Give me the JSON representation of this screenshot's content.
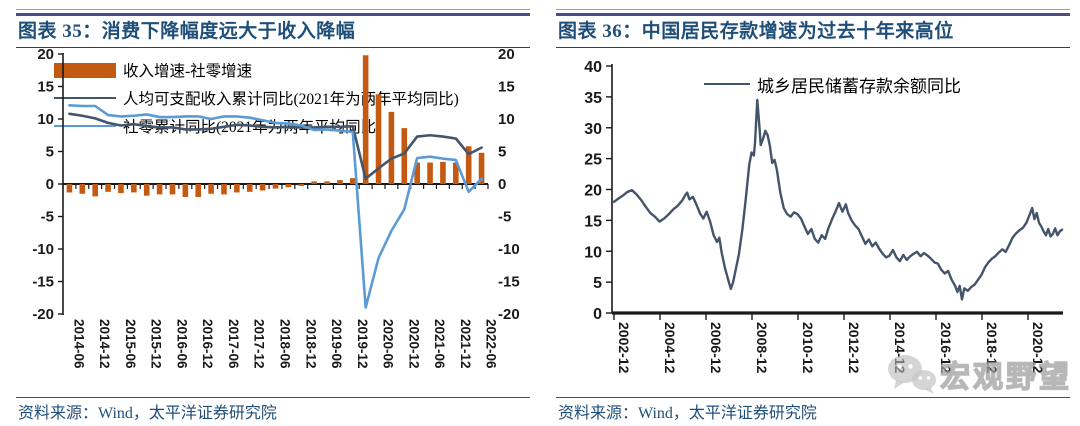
{
  "figures": [
    {
      "title": "图表 35：消费下降幅度远大于收入降幅",
      "source": "资料来源：Wind，太平洋证券研究院"
    },
    {
      "title": "图表 36：中国居民存款增速为过去十年来高位",
      "source": "资料来源：Wind，太平洋证券研究院"
    }
  ],
  "chart_data": [
    {
      "type": "bar",
      "title": "消费下降幅度远大于收入降幅",
      "xlabel": "",
      "ylabel": "",
      "ylim": [
        -20,
        20
      ],
      "y_ticks": [
        20,
        15,
        10,
        5,
        0,
        -5,
        -10,
        -15,
        -20
      ],
      "dual_y_axis": true,
      "grid": false,
      "legend_position": "top-left-inside",
      "x": [
        "2014-06",
        "2014-09",
        "2014-12",
        "2015-03",
        "2015-06",
        "2015-09",
        "2015-12",
        "2016-03",
        "2016-06",
        "2016-09",
        "2016-12",
        "2017-03",
        "2017-06",
        "2017-09",
        "2017-12",
        "2018-03",
        "2018-06",
        "2018-09",
        "2018-12",
        "2019-03",
        "2019-06",
        "2019-09",
        "2019-12",
        "2020-03",
        "2020-06",
        "2020-09",
        "2020-12",
        "2021-03",
        "2021-06",
        "2021-09",
        "2021-12",
        "2022-03",
        "2022-06"
      ],
      "x_tick_labels": [
        "2014-06",
        "2014-12",
        "2015-06",
        "2015-12",
        "2016-06",
        "2016-12",
        "2017-06",
        "2017-12",
        "2018-06",
        "2018-12",
        "2019-06",
        "2019-12",
        "2020-06",
        "2020-12",
        "2021-06",
        "2021-12",
        "2022-06"
      ],
      "series": [
        {
          "name": "收入增速-社零增速",
          "type": "bar",
          "color": "#C45911",
          "values": [
            -1.3,
            -1.5,
            -1.9,
            -1.2,
            -1.4,
            -1.3,
            -1.8,
            -1.6,
            -1.6,
            -2.0,
            -2.0,
            -1.5,
            -1.6,
            -1.3,
            -1.2,
            -1.0,
            -0.7,
            -0.5,
            -0.3,
            0.4,
            0.4,
            0.6,
            0.9,
            19.8,
            13.8,
            11.1,
            8.6,
            3.3,
            3.3,
            3.4,
            3.3,
            5.8,
            4.8
          ]
        },
        {
          "name": "人均可支配收入累计同比(2021年为两年平均同比)",
          "type": "line",
          "color": "#44546A",
          "values": [
            10.8,
            10.5,
            10.1,
            9.4,
            9.0,
            9.2,
            8.9,
            8.7,
            8.7,
            8.4,
            8.4,
            8.5,
            8.8,
            9.1,
            9.0,
            8.8,
            8.7,
            8.8,
            8.7,
            8.7,
            8.8,
            8.8,
            8.9,
            0.8,
            2.4,
            3.9,
            4.7,
            7.3,
            7.5,
            7.3,
            7.0,
            4.6,
            5.6
          ]
        },
        {
          "name": "社零累计同比(2021年为两年平均同比)",
          "type": "line",
          "color": "#5B9BD5",
          "values": [
            12.1,
            12.0,
            12.0,
            10.6,
            10.4,
            10.5,
            10.7,
            10.3,
            10.3,
            10.4,
            10.4,
            10.0,
            10.4,
            10.4,
            10.2,
            9.8,
            9.4,
            9.3,
            9.0,
            8.3,
            8.4,
            8.2,
            8.0,
            -19.0,
            -11.4,
            -7.2,
            -3.9,
            4.0,
            4.2,
            3.9,
            3.7,
            -1.2,
            0.8
          ]
        }
      ]
    },
    {
      "type": "line",
      "title": "中国居民存款增速为过去十年来高位",
      "xlabel": "",
      "ylabel": "",
      "ylim": [
        0,
        40
      ],
      "y_ticks": [
        40,
        35,
        30,
        25,
        20,
        15,
        10,
        5,
        0
      ],
      "grid": false,
      "legend_position": "top-center-inside",
      "x_tick_labels": [
        "2002-12",
        "2004-12",
        "2006-12",
        "2008-12",
        "2010-12",
        "2012-12",
        "2014-12",
        "2016-12",
        "2018-12",
        "2020-12"
      ],
      "x_tick_years": [
        2002.92,
        2004.92,
        2006.92,
        2008.92,
        2010.92,
        2012.92,
        2014.92,
        2016.92,
        2018.92,
        2020.92
      ],
      "series": [
        {
          "name": "城乡居民储蓄存款余额同比",
          "type": "line",
          "color": "#44546A",
          "x": [
            2002.92,
            2003.1,
            2003.3,
            2003.5,
            2003.7,
            2003.9,
            2004.1,
            2004.3,
            2004.5,
            2004.7,
            2004.9,
            2005.1,
            2005.3,
            2005.5,
            2005.7,
            2005.9,
            2006.0,
            2006.1,
            2006.2,
            2006.35,
            2006.5,
            2006.65,
            2006.8,
            2006.95,
            2007.1,
            2007.25,
            2007.4,
            2007.5,
            2007.6,
            2007.75,
            2007.9,
            2008.0,
            2008.1,
            2008.2,
            2008.35,
            2008.5,
            2008.65,
            2008.8,
            2008.9,
            2009.0,
            2009.05,
            2009.15,
            2009.25,
            2009.3,
            2009.4,
            2009.5,
            2009.6,
            2009.7,
            2009.8,
            2009.9,
            2010.0,
            2010.15,
            2010.3,
            2010.45,
            2010.6,
            2010.75,
            2010.9,
            2011.05,
            2011.2,
            2011.35,
            2011.5,
            2011.65,
            2011.8,
            2011.95,
            2012.1,
            2012.25,
            2012.4,
            2012.55,
            2012.7,
            2012.85,
            2013.0,
            2013.1,
            2013.25,
            2013.4,
            2013.55,
            2013.7,
            2013.85,
            2014.0,
            2014.15,
            2014.3,
            2014.45,
            2014.6,
            2014.75,
            2014.9,
            2015.05,
            2015.2,
            2015.35,
            2015.5,
            2015.65,
            2015.8,
            2015.95,
            2016.1,
            2016.25,
            2016.4,
            2016.55,
            2016.7,
            2016.85,
            2017.0,
            2017.15,
            2017.3,
            2017.45,
            2017.6,
            2017.75,
            2017.85,
            2017.95,
            2018.05,
            2018.15,
            2018.3,
            2018.45,
            2018.6,
            2018.75,
            2018.9,
            2019.05,
            2019.2,
            2019.35,
            2019.5,
            2019.65,
            2019.8,
            2019.95,
            2020.1,
            2020.25,
            2020.4,
            2020.55,
            2020.7,
            2020.85,
            2021.0,
            2021.1,
            2021.2,
            2021.3,
            2021.4,
            2021.5,
            2021.6,
            2021.7,
            2021.8,
            2021.9,
            2022.0,
            2022.1,
            2022.2,
            2022.3,
            2022.4
          ],
          "values": [
            18.0,
            18.5,
            19.0,
            19.6,
            19.9,
            19.2,
            18.3,
            17.2,
            16.2,
            15.6,
            14.8,
            15.3,
            16.0,
            16.8,
            17.4,
            18.3,
            19.0,
            19.5,
            18.4,
            18.8,
            17.6,
            16.2,
            15.3,
            16.4,
            14.8,
            12.6,
            11.5,
            12.2,
            9.8,
            7.2,
            5.2,
            3.9,
            5.0,
            6.8,
            9.5,
            13.5,
            18.5,
            24.0,
            26.0,
            25.5,
            27.5,
            34.5,
            29.8,
            27.2,
            28.2,
            29.5,
            28.8,
            27.0,
            24.3,
            24.8,
            23.2,
            19.5,
            17.0,
            16.0,
            15.6,
            16.3,
            16.0,
            15.3,
            14.0,
            12.8,
            13.6,
            12.0,
            11.4,
            12.6,
            12.0,
            13.8,
            15.2,
            16.4,
            17.8,
            16.4,
            17.6,
            16.2,
            15.0,
            14.2,
            13.6,
            12.4,
            11.2,
            11.9,
            10.8,
            11.4,
            10.4,
            9.6,
            9.0,
            9.3,
            10.2,
            9.0,
            8.4,
            9.4,
            8.6,
            9.2,
            9.6,
            9.9,
            9.2,
            9.7,
            9.3,
            8.8,
            8.2,
            8.0,
            7.0,
            6.4,
            6.8,
            5.4,
            4.4,
            3.4,
            4.4,
            2.2,
            4.0,
            3.6,
            4.2,
            4.6,
            5.4,
            6.2,
            7.4,
            8.2,
            8.8,
            9.2,
            9.8,
            10.3,
            9.9,
            11.0,
            12.2,
            12.9,
            13.4,
            13.8,
            14.6,
            16.0,
            17.0,
            15.2,
            16.2,
            14.6,
            14.0,
            13.2,
            12.6,
            13.6,
            12.4,
            12.8,
            13.7,
            12.6,
            13.2,
            13.5
          ]
        }
      ]
    }
  ],
  "watermark": {
    "icon": "wechat-icon",
    "text": "宏观野望"
  },
  "colors": {
    "bar_orange": "#C45911",
    "line_dark_slate": "#44546A",
    "line_light_blue": "#5B9BD5",
    "title_blue": "#1F4E79",
    "rule_purple": "#4E4E86",
    "axis_black": "#1a1a1a",
    "watermark_gray": "#bdbdbd"
  }
}
